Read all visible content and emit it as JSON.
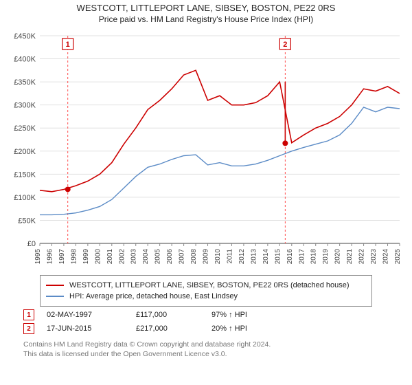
{
  "title_line1": "WESTCOTT, LITTLEPORT LANE, SIBSEY, BOSTON, PE22 0RS",
  "title_line2": "Price paid vs. HM Land Registry's House Price Index (HPI)",
  "chart": {
    "type": "line",
    "background_color": "#ffffff",
    "grid_color": "#e0e0e0",
    "axis_color": "#444444",
    "label_fontsize": 11,
    "x_years": [
      1995,
      1996,
      1997,
      1998,
      1999,
      2000,
      2001,
      2002,
      2003,
      2004,
      2005,
      2006,
      2007,
      2008,
      2009,
      2010,
      2011,
      2012,
      2013,
      2014,
      2015,
      2016,
      2017,
      2018,
      2019,
      2020,
      2021,
      2022,
      2023,
      2024,
      2025
    ],
    "ylim": [
      0,
      450000
    ],
    "ytick_step": 50000,
    "ytick_labels": [
      "£0",
      "£50K",
      "£100K",
      "£150K",
      "£200K",
      "£250K",
      "£300K",
      "£350K",
      "£400K",
      "£450K"
    ],
    "series": [
      {
        "name": "price_paid",
        "label": "WESTCOTT, LITTLEPORT LANE, SIBSEY, BOSTON, PE22 0RS (detached house)",
        "color": "#cc0000",
        "line_width": 1.6,
        "y": [
          115000,
          112000,
          117000,
          125000,
          135000,
          150000,
          175000,
          215000,
          250000,
          290000,
          310000,
          335000,
          365000,
          375000,
          310000,
          320000,
          300000,
          300000,
          305000,
          320000,
          350000,
          218000,
          235000,
          250000,
          260000,
          275000,
          300000,
          335000,
          330000,
          340000,
          325000
        ]
      },
      {
        "name": "hpi",
        "label": "HPI: Average price, detached house, East Lindsey",
        "color": "#5b8bc6",
        "line_width": 1.4,
        "y": [
          62000,
          62000,
          63000,
          66000,
          72000,
          80000,
          95000,
          120000,
          145000,
          165000,
          172000,
          182000,
          190000,
          192000,
          170000,
          175000,
          168000,
          168000,
          172000,
          180000,
          190000,
          200000,
          208000,
          215000,
          222000,
          235000,
          260000,
          295000,
          285000,
          295000,
          292000
        ]
      }
    ],
    "events": [
      {
        "num": "1",
        "year": 1997.33,
        "price": 117000,
        "date": "02-MAY-1997",
        "price_label": "£117,000",
        "delta": "97% ↑ HPI"
      },
      {
        "num": "2",
        "year": 2015.46,
        "price": 217000,
        "date": "17-JUN-2015",
        "price_label": "£217,000",
        "delta": "20% ↑ HPI"
      }
    ]
  },
  "legend": {
    "series1_label": "WESTCOTT, LITTLEPORT LANE, SIBSEY, BOSTON, PE22 0RS (detached house)",
    "series2_label": "HPI: Average price, detached house, East Lindsey"
  },
  "footer_line1": "Contains HM Land Registry data © Crown copyright and database right 2024.",
  "footer_line2": "This data is licensed under the Open Government Licence v3.0."
}
